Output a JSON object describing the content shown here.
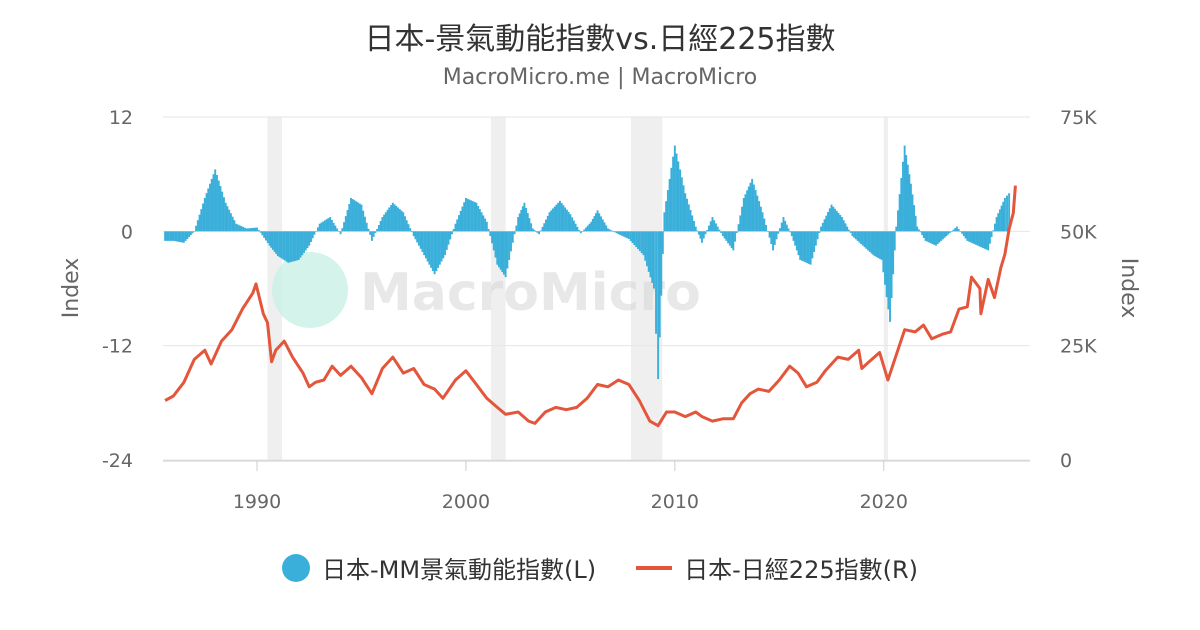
{
  "title": "日本-景氣動能指數vs.日經225指數",
  "subtitle": "MacroMicro.me | MacroMicro",
  "watermark": "MacroMicro",
  "colors": {
    "bars": "#3aafda",
    "line": "#e4563b",
    "recession": "#efefef",
    "grid": "#e6e6e6",
    "watermark_icon": "#c8f0e6"
  },
  "legend": [
    {
      "label": "日本-MM景氣動能指數(L)",
      "color": "#3aafda",
      "shape": "circle"
    },
    {
      "label": "日本-日經225指數(R)",
      "color": "#e4563b",
      "shape": "line"
    }
  ],
  "chart_data": {
    "type": "bar+line",
    "x_axis": {
      "ticks": [
        "1990",
        "2000",
        "2010",
        "2020"
      ],
      "range": [
        1985.5,
        2027
      ]
    },
    "y_left": {
      "title": "Index",
      "ticks": [
        "12",
        "0",
        "-12",
        "-24"
      ],
      "range": [
        -24,
        12
      ]
    },
    "y_right": {
      "title": "Index",
      "ticks": [
        "75K",
        "50K",
        "25K",
        "0"
      ],
      "range": [
        0,
        75000
      ]
    },
    "recession_periods": [
      [
        1990.5,
        1991.2
      ],
      [
        2001.2,
        2001.9
      ],
      [
        2007.9,
        2009.4
      ],
      [
        2020.0,
        2020.2
      ]
    ],
    "series": [
      {
        "name": "日本-MM景氣動能指數(L)",
        "type": "bar",
        "axis": "left",
        "points": [
          [
            1985.6,
            -1
          ],
          [
            1986.0,
            -1
          ],
          [
            1986.5,
            -1.2
          ],
          [
            1987.0,
            0
          ],
          [
            1987.5,
            3.5
          ],
          [
            1988.0,
            6.5
          ],
          [
            1988.5,
            3.0
          ],
          [
            1989.0,
            0.8
          ],
          [
            1989.5,
            0.3
          ],
          [
            1990.0,
            0.4
          ],
          [
            1990.6,
            -1.5
          ],
          [
            1991.0,
            -2.6
          ],
          [
            1991.5,
            -3.3
          ],
          [
            1992.0,
            -3.0
          ],
          [
            1992.5,
            -1.5
          ],
          [
            1993.0,
            0.8
          ],
          [
            1993.5,
            1.5
          ],
          [
            1994.0,
            -0.3
          ],
          [
            1994.5,
            3.5
          ],
          [
            1995.0,
            2.8
          ],
          [
            1995.5,
            -1.0
          ],
          [
            1996.0,
            1.5
          ],
          [
            1996.5,
            3.0
          ],
          [
            1997.0,
            2.0
          ],
          [
            1997.5,
            -0.5
          ],
          [
            1998.0,
            -2.5
          ],
          [
            1998.5,
            -4.5
          ],
          [
            1999.0,
            -2.5
          ],
          [
            1999.5,
            0.8
          ],
          [
            2000.0,
            3.5
          ],
          [
            2000.5,
            3.0
          ],
          [
            2001.0,
            1.0
          ],
          [
            2001.5,
            -3.5
          ],
          [
            2001.9,
            -4.8
          ],
          [
            2002.5,
            1.5
          ],
          [
            2002.8,
            3.0
          ],
          [
            2003.2,
            0.3
          ],
          [
            2003.5,
            -0.3
          ],
          [
            2004.0,
            2.0
          ],
          [
            2004.5,
            3.2
          ],
          [
            2005.0,
            1.8
          ],
          [
            2005.5,
            -0.2
          ],
          [
            2006.0,
            1.0
          ],
          [
            2006.3,
            2.2
          ],
          [
            2006.8,
            0.3
          ],
          [
            2007.3,
            -0.3
          ],
          [
            2007.8,
            -0.8
          ],
          [
            2008.5,
            -2.5
          ],
          [
            2009.0,
            -6.0
          ],
          [
            2009.2,
            -15.5
          ],
          [
            2009.5,
            2.0
          ],
          [
            2010.0,
            9.0
          ],
          [
            2010.5,
            4.0
          ],
          [
            2011.0,
            0.5
          ],
          [
            2011.3,
            -1.2
          ],
          [
            2011.8,
            1.5
          ],
          [
            2012.3,
            -0.5
          ],
          [
            2012.8,
            -2.0
          ],
          [
            2013.3,
            3.5
          ],
          [
            2013.7,
            5.5
          ],
          [
            2014.2,
            2.0
          ],
          [
            2014.7,
            -2.0
          ],
          [
            2015.2,
            1.5
          ],
          [
            2015.6,
            -0.5
          ],
          [
            2016.0,
            -3.0
          ],
          [
            2016.5,
            -3.5
          ],
          [
            2017.0,
            0.5
          ],
          [
            2017.5,
            2.8
          ],
          [
            2018.0,
            1.5
          ],
          [
            2018.5,
            -0.5
          ],
          [
            2019.0,
            -1.5
          ],
          [
            2019.5,
            -2.5
          ],
          [
            2019.9,
            -3.0
          ],
          [
            2020.3,
            -9.5
          ],
          [
            2020.6,
            0.5
          ],
          [
            2021.0,
            9.0
          ],
          [
            2021.3,
            5.0
          ],
          [
            2021.6,
            0.5
          ],
          [
            2022.0,
            -1.0
          ],
          [
            2022.5,
            -1.5
          ],
          [
            2023.0,
            -0.5
          ],
          [
            2023.5,
            0.5
          ],
          [
            2024.0,
            -1.0
          ],
          [
            2024.5,
            -1.5
          ],
          [
            2025.0,
            -2.0
          ],
          [
            2025.4,
            1.5
          ],
          [
            2025.8,
            3.5
          ],
          [
            2026.0,
            4.0
          ]
        ]
      },
      {
        "name": "日本-日經225指數(R)",
        "type": "line",
        "axis": "right",
        "points": [
          [
            1985.6,
            13000
          ],
          [
            1986.0,
            14000
          ],
          [
            1986.5,
            17000
          ],
          [
            1987.0,
            22000
          ],
          [
            1987.5,
            24000
          ],
          [
            1987.8,
            21000
          ],
          [
            1988.3,
            26000
          ],
          [
            1988.8,
            28500
          ],
          [
            1989.3,
            33000
          ],
          [
            1989.8,
            36500
          ],
          [
            1989.95,
            38500
          ],
          [
            1990.3,
            32000
          ],
          [
            1990.5,
            30000
          ],
          [
            1990.7,
            21500
          ],
          [
            1990.9,
            24000
          ],
          [
            1991.3,
            26000
          ],
          [
            1991.7,
            22500
          ],
          [
            1992.2,
            19000
          ],
          [
            1992.5,
            16000
          ],
          [
            1992.8,
            17000
          ],
          [
            1993.2,
            17500
          ],
          [
            1993.6,
            20500
          ],
          [
            1994.0,
            18500
          ],
          [
            1994.5,
            20500
          ],
          [
            1995.0,
            18000
          ],
          [
            1995.5,
            14500
          ],
          [
            1996.0,
            20000
          ],
          [
            1996.5,
            22500
          ],
          [
            1997.0,
            19000
          ],
          [
            1997.5,
            20000
          ],
          [
            1998.0,
            16500
          ],
          [
            1998.5,
            15500
          ],
          [
            1998.9,
            13500
          ],
          [
            1999.5,
            17500
          ],
          [
            2000.0,
            19500
          ],
          [
            2000.5,
            16500
          ],
          [
            2001.0,
            13500
          ],
          [
            2001.5,
            11500
          ],
          [
            2001.9,
            10000
          ],
          [
            2002.5,
            10500
          ],
          [
            2003.0,
            8500
          ],
          [
            2003.3,
            8000
          ],
          [
            2003.8,
            10500
          ],
          [
            2004.3,
            11500
          ],
          [
            2004.8,
            11000
          ],
          [
            2005.3,
            11500
          ],
          [
            2005.8,
            13500
          ],
          [
            2006.3,
            16500
          ],
          [
            2006.8,
            16000
          ],
          [
            2007.3,
            17500
          ],
          [
            2007.8,
            16500
          ],
          [
            2008.3,
            13000
          ],
          [
            2008.8,
            8500
          ],
          [
            2009.2,
            7500
          ],
          [
            2009.6,
            10500
          ],
          [
            2010.0,
            10500
          ],
          [
            2010.5,
            9500
          ],
          [
            2011.0,
            10500
          ],
          [
            2011.3,
            9500
          ],
          [
            2011.8,
            8500
          ],
          [
            2012.3,
            9000
          ],
          [
            2012.8,
            9000
          ],
          [
            2013.2,
            12500
          ],
          [
            2013.6,
            14500
          ],
          [
            2014.0,
            15500
          ],
          [
            2014.5,
            15000
          ],
          [
            2015.0,
            17500
          ],
          [
            2015.5,
            20500
          ],
          [
            2015.9,
            19000
          ],
          [
            2016.3,
            16000
          ],
          [
            2016.8,
            17000
          ],
          [
            2017.2,
            19500
          ],
          [
            2017.8,
            22500
          ],
          [
            2018.3,
            22000
          ],
          [
            2018.8,
            24000
          ],
          [
            2018.95,
            20000
          ],
          [
            2019.3,
            21500
          ],
          [
            2019.8,
            23500
          ],
          [
            2020.2,
            17500
          ],
          [
            2020.6,
            23000
          ],
          [
            2021.0,
            28500
          ],
          [
            2021.5,
            28000
          ],
          [
            2021.9,
            29500
          ],
          [
            2022.3,
            26500
          ],
          [
            2022.8,
            27500
          ],
          [
            2023.2,
            28000
          ],
          [
            2023.6,
            33000
          ],
          [
            2024.0,
            33500
          ],
          [
            2024.2,
            40000
          ],
          [
            2024.6,
            37500
          ],
          [
            2024.65,
            32000
          ],
          [
            2025.0,
            39500
          ],
          [
            2025.3,
            35500
          ],
          [
            2025.6,
            42000
          ],
          [
            2025.8,
            45000
          ],
          [
            2026.0,
            50500
          ],
          [
            2026.2,
            54000
          ],
          [
            2026.3,
            60000
          ]
        ]
      }
    ]
  }
}
